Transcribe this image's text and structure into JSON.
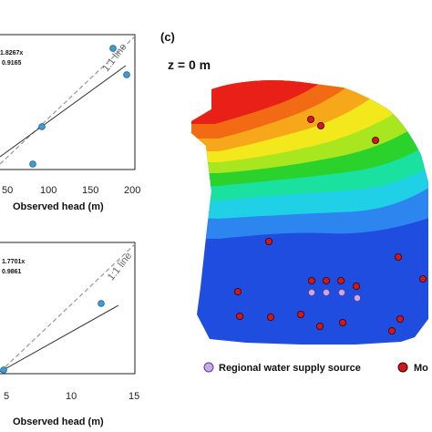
{
  "top_plot": {
    "equation": "1.8267x",
    "r2": "0.9165",
    "line_label": "1:1 line",
    "xlabel": "Observed head (m)",
    "ticks": [
      "50",
      "100",
      "150",
      "200"
    ]
  },
  "bottom_plot": {
    "equation": "1.7701x",
    "r2": "0.9861",
    "line_label": "1:1 line",
    "xlabel": "Observed head (m)",
    "ticks": [
      "5",
      "10",
      "15"
    ]
  },
  "map": {
    "panel_label": "(c)",
    "depth_label": "z = 0 m",
    "legend": [
      {
        "label": "Regional water supply source",
        "color": "#c9a8f0"
      },
      {
        "label": "Mo",
        "color": "#d01818"
      }
    ]
  },
  "colors": {
    "scatter_point": "#3d9bd6",
    "red_well": "#d01818",
    "purple_source": "#c9a8f0"
  }
}
